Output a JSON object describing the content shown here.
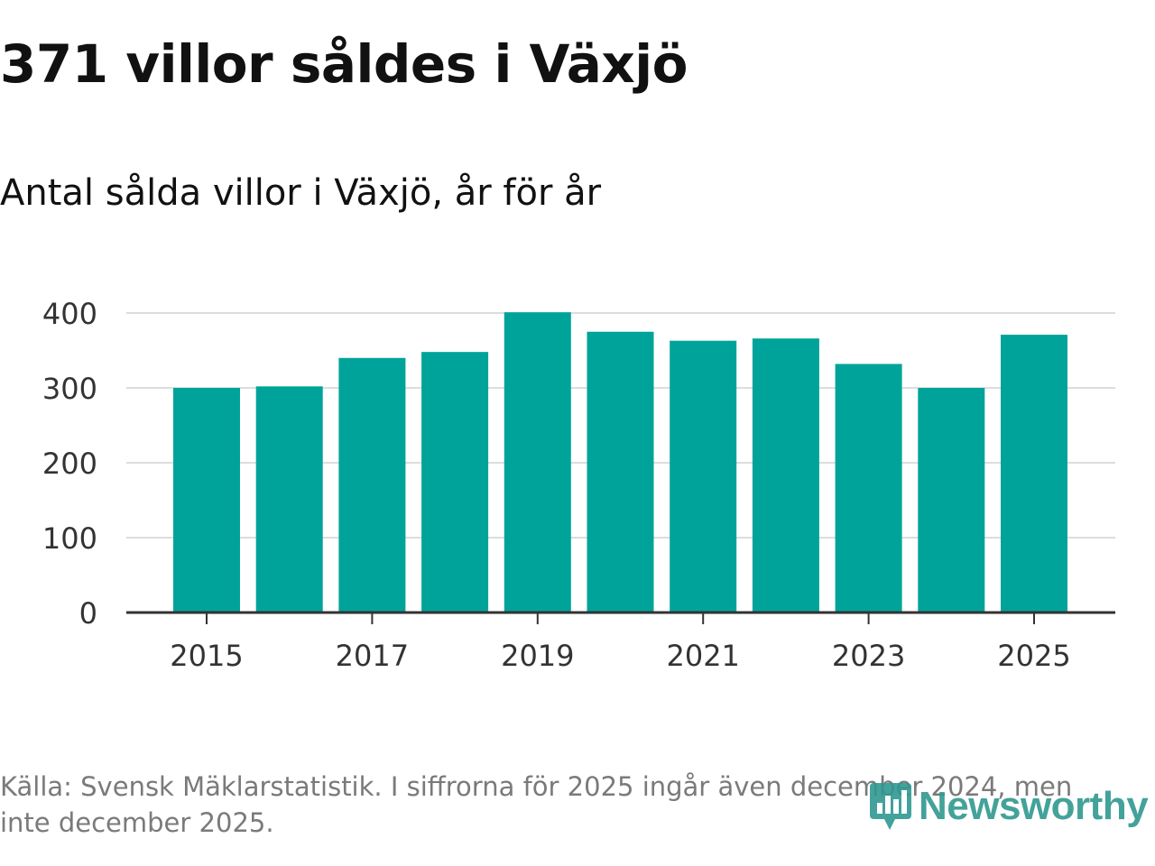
{
  "title": "371 villor såldes i Växjö",
  "subtitle": "Antal sålda villor i Växjö, år för år",
  "footer": "Källa: Svensk Mäklarstatistik. I siffrorna för 2025 ingår även december 2024, men inte december 2025.",
  "logo": {
    "text": "Newsworthy",
    "icon": "newsworthy-logo-icon",
    "color": "#2f9890"
  },
  "chart_data": {
    "type": "bar",
    "categories": [
      "2015",
      "2016",
      "2017",
      "2018",
      "2019",
      "2020",
      "2021",
      "2022",
      "2023",
      "2024",
      "2025"
    ],
    "values": [
      300,
      302,
      340,
      348,
      401,
      375,
      363,
      366,
      332,
      300,
      371
    ],
    "x_tick_labels": [
      "2015",
      "2017",
      "2019",
      "2021",
      "2023",
      "2025"
    ],
    "y_ticks": [
      0,
      100,
      200,
      300,
      400
    ],
    "ylim": [
      0,
      400
    ],
    "grid": true,
    "bar_color": "#00a39a",
    "xlabel": "",
    "ylabel": ""
  }
}
